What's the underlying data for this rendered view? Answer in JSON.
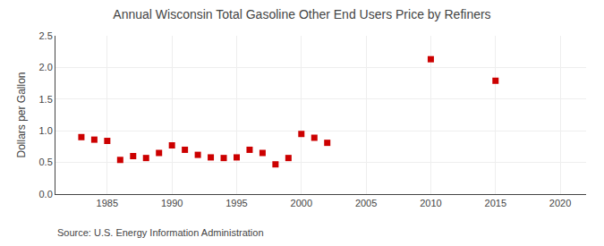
{
  "chart_data": {
    "type": "scatter",
    "title": "Annual Wisconsin Total Gasoline Other End Users Price by Refiners",
    "y_label": "Dollars per Gallon",
    "annotations": [
      "Source: U.S. Energy Information Administration"
    ],
    "x": [
      1983,
      1984,
      1985,
      1986,
      1987,
      1988,
      1989,
      1990,
      1991,
      1992,
      1993,
      1994,
      1995,
      1996,
      1997,
      1998,
      1999,
      2000,
      2001,
      2002,
      2010,
      2015
    ],
    "values": [
      0.9,
      0.86,
      0.84,
      0.54,
      0.6,
      0.57,
      0.65,
      0.77,
      0.7,
      0.62,
      0.58,
      0.57,
      0.58,
      0.7,
      0.65,
      0.47,
      0.57,
      0.95,
      0.89,
      0.81,
      2.13,
      1.79
    ],
    "color": "#cc0000",
    "marker": "square",
    "xlim": [
      1981,
      2022
    ],
    "xticks": [
      1985,
      1990,
      1995,
      2000,
      2005,
      2010,
      2015,
      2020
    ],
    "ylim": [
      0.0,
      2.5
    ],
    "yticks": [
      {
        "value": 0.0,
        "label": "0.0"
      },
      0.5,
      {
        "value": 1.0,
        "label": "1.0"
      },
      1.5,
      {
        "value": 2.0,
        "label": "2.0"
      },
      2.5
    ],
    "grid": true
  }
}
